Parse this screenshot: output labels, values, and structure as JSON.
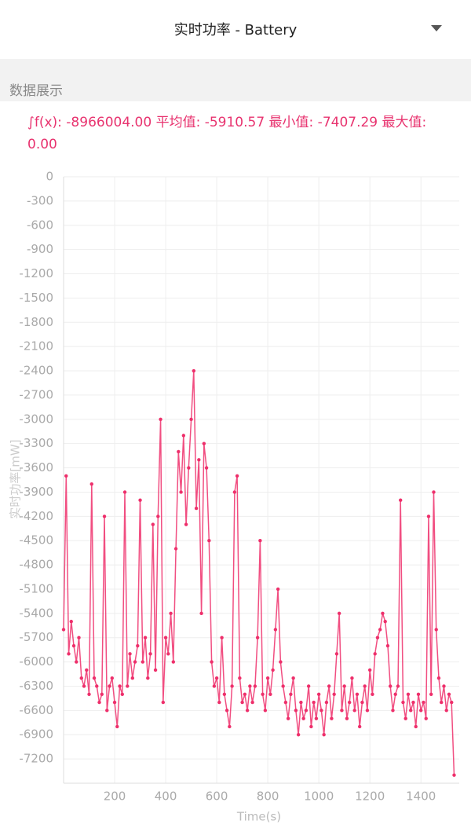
{
  "header": {
    "title": "实时功率 - Battery"
  },
  "section_label": "数据展示",
  "stats": "∫f(x): -8966004.00 平均值: -5910.57 最小值: -7407.29 最大值: 0.00",
  "chart_data": {
    "type": "line",
    "x_label": "Time(s)",
    "y_label": "实时功率[mW]",
    "color": "#ee2f6b",
    "xlim": [
      0,
      1550
    ],
    "xticks": [
      200,
      400,
      600,
      800,
      1000,
      1200,
      1400
    ],
    "ylim": [
      -7500,
      0
    ],
    "yticks": [
      0,
      -300,
      -600,
      -900,
      -1200,
      -1500,
      -1800,
      -2100,
      -2400,
      -2700,
      -3000,
      -3300,
      -3600,
      -3900,
      -4200,
      -4500,
      -4800,
      -5100,
      -5400,
      -5700,
      -6000,
      -6300,
      -6600,
      -6900,
      -7200
    ],
    "grid": true,
    "x": [
      0,
      10,
      20,
      30,
      40,
      50,
      60,
      70,
      80,
      90,
      100,
      110,
      120,
      130,
      140,
      150,
      160,
      170,
      180,
      190,
      200,
      210,
      220,
      230,
      240,
      250,
      260,
      270,
      280,
      290,
      300,
      310,
      320,
      330,
      340,
      350,
      360,
      370,
      380,
      390,
      400,
      410,
      420,
      430,
      440,
      450,
      460,
      470,
      480,
      490,
      500,
      510,
      520,
      530,
      540,
      550,
      560,
      570,
      580,
      590,
      600,
      610,
      620,
      630,
      640,
      650,
      660,
      670,
      680,
      690,
      700,
      710,
      720,
      730,
      740,
      750,
      760,
      770,
      780,
      790,
      800,
      810,
      820,
      830,
      840,
      850,
      860,
      870,
      880,
      890,
      900,
      910,
      920,
      930,
      940,
      950,
      960,
      970,
      980,
      990,
      1000,
      1010,
      1020,
      1030,
      1040,
      1050,
      1060,
      1070,
      1080,
      1090,
      1100,
      1110,
      1120,
      1130,
      1140,
      1150,
      1160,
      1170,
      1180,
      1190,
      1200,
      1210,
      1220,
      1230,
      1240,
      1250,
      1260,
      1270,
      1280,
      1290,
      1300,
      1310,
      1320,
      1330,
      1340,
      1350,
      1360,
      1370,
      1380,
      1390,
      1400,
      1410,
      1420,
      1430,
      1440,
      1450,
      1460,
      1470,
      1480,
      1490,
      1500,
      1510,
      1520,
      1530
    ],
    "values": [
      -5600,
      -3700,
      -5900,
      -5500,
      -5800,
      -6000,
      -5700,
      -6200,
      -6300,
      -6100,
      -6400,
      -3800,
      -6200,
      -6300,
      -6500,
      -6400,
      -4200,
      -6600,
      -6300,
      -6200,
      -6500,
      -6800,
      -6300,
      -6400,
      -3900,
      -6300,
      -5900,
      -6200,
      -6000,
      -5800,
      -4000,
      -6000,
      -5700,
      -6200,
      -5900,
      -4300,
      -6100,
      -4200,
      -3000,
      -6500,
      -5700,
      -5900,
      -5400,
      -6000,
      -4600,
      -3400,
      -3900,
      -3200,
      -4300,
      -3600,
      -3000,
      -2400,
      -4100,
      -3500,
      -5400,
      -3300,
      -3600,
      -4500,
      -6000,
      -6300,
      -6200,
      -6500,
      -5700,
      -6400,
      -6600,
      -6800,
      -6300,
      -3900,
      -3700,
      -6200,
      -6500,
      -6400,
      -6600,
      -6300,
      -6500,
      -6300,
      -5700,
      -4500,
      -6400,
      -6600,
      -6200,
      -6400,
      -6100,
      -5600,
      -5100,
      -6000,
      -6300,
      -6500,
      -6700,
      -6400,
      -6200,
      -6600,
      -6900,
      -6500,
      -6700,
      -6600,
      -6300,
      -6800,
      -6500,
      -6700,
      -6400,
      -6600,
      -6900,
      -6500,
      -6300,
      -6700,
      -6400,
      -5900,
      -5400,
      -6600,
      -6300,
      -6700,
      -6500,
      -6200,
      -6600,
      -6400,
      -6800,
      -6500,
      -6300,
      -6600,
      -6100,
      -6400,
      -5900,
      -5700,
      -5600,
      -5400,
      -5500,
      -5800,
      -6300,
      -6600,
      -6400,
      -6300,
      -4000,
      -6500,
      -6700,
      -6400,
      -6600,
      -6500,
      -6800,
      -6400,
      -6600,
      -6500,
      -6700,
      -4200,
      -6400,
      -3900,
      -5600,
      -6200,
      -6500,
      -6300,
      -6600,
      -6400,
      -6500,
      -7400
    ]
  }
}
